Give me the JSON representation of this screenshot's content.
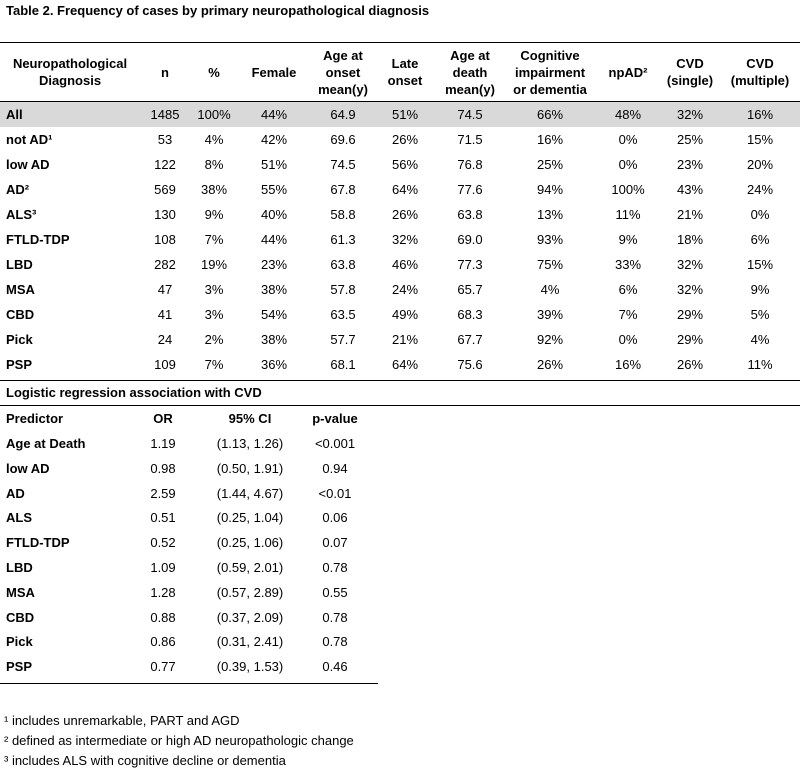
{
  "title": "Table 2. Frequency of cases by primary neuropathological diagnosis",
  "table": {
    "header": [
      "Neuropathological\nDiagnosis",
      "n",
      "%",
      "Female",
      "Age at\nonset\nmean(y)",
      "Late\nonset",
      "Age at\ndeath\nmean(y)",
      "Cognitive\nimpairment\nor dementia",
      "npAD²",
      "CVD\n(single)",
      "CVD\n(multiple)"
    ],
    "rows": [
      [
        "All",
        "1485",
        "100%",
        "44%",
        "64.9",
        "51%",
        "74.5",
        "66%",
        "48%",
        "32%",
        "16%"
      ],
      [
        "not AD¹",
        "53",
        "4%",
        "42%",
        "69.6",
        "26%",
        "71.5",
        "16%",
        "0%",
        "25%",
        "15%"
      ],
      [
        "low AD",
        "122",
        "8%",
        "51%",
        "74.5",
        "56%",
        "76.8",
        "25%",
        "0%",
        "23%",
        "20%"
      ],
      [
        "AD²",
        "569",
        "38%",
        "55%",
        "67.8",
        "64%",
        "77.6",
        "94%",
        "100%",
        "43%",
        "24%"
      ],
      [
        "ALS³",
        "130",
        "9%",
        "40%",
        "58.8",
        "26%",
        "63.8",
        "13%",
        "11%",
        "21%",
        "0%"
      ],
      [
        "FTLD-TDP",
        "108",
        "7%",
        "44%",
        "61.3",
        "32%",
        "69.0",
        "93%",
        "9%",
        "18%",
        "6%"
      ],
      [
        "LBD",
        "282",
        "19%",
        "23%",
        "63.8",
        "46%",
        "77.3",
        "75%",
        "33%",
        "32%",
        "15%"
      ],
      [
        "MSA",
        "47",
        "3%",
        "38%",
        "57.8",
        "24%",
        "65.7",
        "4%",
        "6%",
        "32%",
        "9%"
      ],
      [
        "CBD",
        "41",
        "3%",
        "54%",
        "63.5",
        "49%",
        "68.3",
        "39%",
        "7%",
        "29%",
        "5%"
      ],
      [
        "Pick",
        "24",
        "2%",
        "38%",
        "57.7",
        "21%",
        "67.7",
        "92%",
        "0%",
        "29%",
        "4%"
      ],
      [
        "PSP",
        "109",
        "7%",
        "36%",
        "68.1",
        "64%",
        "75.6",
        "26%",
        "16%",
        "26%",
        "11%"
      ]
    ]
  },
  "regression": {
    "title": "Logistic regression association with CVD",
    "header": [
      "Predictor",
      "OR",
      "95% CI",
      "p-value"
    ],
    "rows": [
      [
        "Age at Death",
        "1.19",
        "(1.13, 1.26)",
        "<0.001"
      ],
      [
        "low AD",
        "0.98",
        "(0.50, 1.91)",
        "0.94"
      ],
      [
        "AD",
        "2.59",
        "(1.44, 4.67)",
        "<0.01"
      ],
      [
        "ALS",
        "0.51",
        "(0.25, 1.04)",
        "0.06"
      ],
      [
        "FTLD-TDP",
        "0.52",
        "(0.25, 1.06)",
        "0.07"
      ],
      [
        "LBD",
        "1.09",
        "(0.59, 2.01)",
        "0.78"
      ],
      [
        "MSA",
        "1.28",
        "(0.57, 2.89)",
        "0.55"
      ],
      [
        "CBD",
        "0.88",
        "(0.37, 2.09)",
        "0.78"
      ],
      [
        "Pick",
        "0.86",
        "(0.31, 2.41)",
        "0.78"
      ],
      [
        "PSP",
        "0.77",
        "(0.39, 1.53)",
        "0.46"
      ]
    ]
  },
  "footnotes": [
    "¹ includes unremarkable, PART and AGD",
    "² defined as intermediate or high AD neuropathologic change",
    "³ includes ALS with cognitive decline or dementia"
  ]
}
